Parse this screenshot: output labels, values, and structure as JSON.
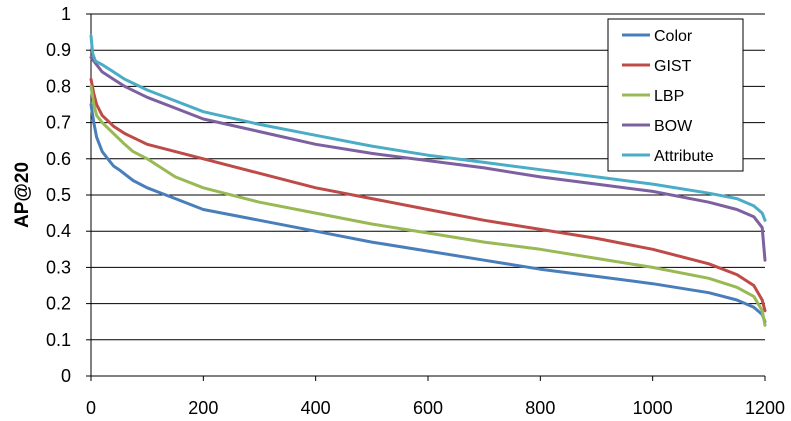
{
  "chart_data": {
    "type": "line",
    "title": "",
    "xlabel": "",
    "ylabel": "AP@20",
    "xlim": [
      0,
      1200
    ],
    "ylim": [
      0,
      1
    ],
    "xticks": [
      0,
      200,
      400,
      600,
      800,
      1000,
      1200
    ],
    "yticks": [
      0,
      0.1,
      0.2,
      0.3,
      0.4,
      0.5,
      0.6,
      0.7,
      0.8,
      0.9,
      1
    ],
    "ytick_labels": [
      "0",
      "0.1",
      "0.2",
      "0.3",
      "0.4",
      "0.5",
      "0.6",
      "0.7",
      "0.8",
      "0.9",
      "1"
    ],
    "grid": "horizontal",
    "legend_position": "top-right",
    "series": [
      {
        "name": "Color",
        "color": "#4a7ebb",
        "x": [
          0,
          5,
          10,
          20,
          30,
          40,
          50,
          75,
          100,
          150,
          200,
          300,
          400,
          500,
          600,
          700,
          800,
          900,
          1000,
          1100,
          1150,
          1180,
          1195,
          1200
        ],
        "y": [
          0.75,
          0.7,
          0.66,
          0.62,
          0.6,
          0.58,
          0.57,
          0.54,
          0.52,
          0.49,
          0.46,
          0.43,
          0.4,
          0.37,
          0.345,
          0.32,
          0.295,
          0.275,
          0.255,
          0.23,
          0.21,
          0.19,
          0.17,
          0.15
        ]
      },
      {
        "name": "GIST",
        "color": "#be4b48",
        "x": [
          0,
          5,
          10,
          20,
          40,
          60,
          100,
          150,
          200,
          300,
          400,
          500,
          600,
          700,
          800,
          900,
          1000,
          1100,
          1150,
          1180,
          1195,
          1200
        ],
        "y": [
          0.82,
          0.78,
          0.75,
          0.72,
          0.69,
          0.67,
          0.64,
          0.62,
          0.6,
          0.56,
          0.52,
          0.49,
          0.46,
          0.43,
          0.405,
          0.38,
          0.35,
          0.31,
          0.28,
          0.25,
          0.21,
          0.18
        ]
      },
      {
        "name": "LBP",
        "color": "#98b954",
        "x": [
          0,
          5,
          10,
          20,
          40,
          60,
          75,
          100,
          150,
          200,
          300,
          400,
          500,
          600,
          700,
          800,
          900,
          1000,
          1100,
          1150,
          1180,
          1195,
          1200
        ],
        "y": [
          0.8,
          0.75,
          0.72,
          0.7,
          0.67,
          0.64,
          0.62,
          0.6,
          0.55,
          0.52,
          0.48,
          0.45,
          0.42,
          0.395,
          0.37,
          0.35,
          0.325,
          0.3,
          0.27,
          0.245,
          0.22,
          0.18,
          0.14
        ]
      },
      {
        "name": "BOW",
        "color": "#7d60a0",
        "x": [
          0,
          5,
          10,
          20,
          40,
          60,
          100,
          150,
          200,
          300,
          400,
          500,
          600,
          700,
          800,
          900,
          1000,
          1100,
          1150,
          1180,
          1195,
          1200
        ],
        "y": [
          0.88,
          0.87,
          0.86,
          0.84,
          0.82,
          0.8,
          0.77,
          0.74,
          0.71,
          0.675,
          0.64,
          0.615,
          0.595,
          0.575,
          0.55,
          0.53,
          0.51,
          0.48,
          0.46,
          0.44,
          0.41,
          0.32
        ]
      },
      {
        "name": "Attribute",
        "color": "#4bacc6",
        "x": [
          0,
          3,
          8,
          20,
          40,
          60,
          100,
          150,
          200,
          300,
          400,
          500,
          600,
          700,
          800,
          900,
          1000,
          1100,
          1150,
          1180,
          1195,
          1200
        ],
        "y": [
          0.94,
          0.89,
          0.87,
          0.86,
          0.84,
          0.82,
          0.79,
          0.76,
          0.73,
          0.695,
          0.665,
          0.635,
          0.61,
          0.59,
          0.57,
          0.55,
          0.53,
          0.505,
          0.49,
          0.47,
          0.45,
          0.43
        ]
      }
    ]
  }
}
